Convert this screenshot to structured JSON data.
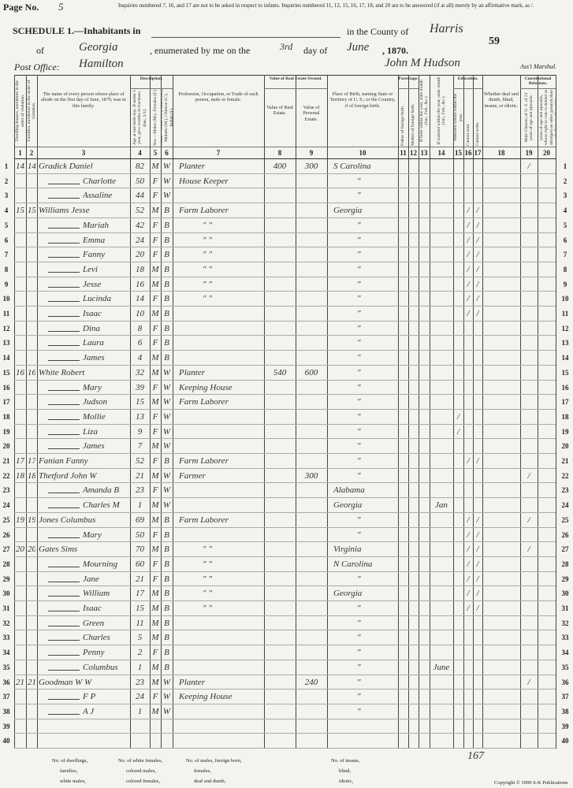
{
  "header": {
    "page_label": "Page No.",
    "page_number": "5",
    "notice": "Inquiries numbered 7, 16, and 17 are not to be asked in respect to infants. Inquiries numbered 11, 12, 15, 16, 17, 18, and 20 are to be answered (if at all) merely by an affirmative mark, as /.",
    "schedule": "SCHEDULE 1.—Inhabitants in",
    "county_label": "in the County of",
    "county": "Harris",
    "sheet": "59",
    "of_label": "of",
    "state": "Georgia",
    "enumerated_label": ", enumerated by me on the",
    "day": "3rd",
    "day_label": "day of",
    "month": "June",
    "year_label": ", 1870.",
    "post_office_label": "Post Office:",
    "post_office": "Hamilton",
    "marshal": "John M Hudson",
    "marshal_label": "Ass't Marshal."
  },
  "groups": [
    "Description.",
    "Value of Real Estate Owned.",
    "Parentage.",
    "Education.",
    "Constitutional Relations."
  ],
  "columns": [
    {
      "number": 1,
      "label": "Dwelling-houses, numbered in the order of visitation."
    },
    {
      "number": 2,
      "label": "Families, numbered in the order of visitation."
    },
    {
      "number": 3,
      "label": "The name of every person whose place of abode on the first day of June, 1870, was in this family."
    },
    {
      "number": 4,
      "label": "Age at last birth-day. If under 1 year, give months in fractions, thus, 3/12."
    },
    {
      "number": 5,
      "label": "Sex.—Males (M.), Females (F.)"
    },
    {
      "number": 6,
      "label": "Color.—White (W.), Black (B.), Mulatto (M.), Chinese (C.), Indian (I.)"
    },
    {
      "number": 7,
      "label": "Profession, Occupation, or Trade of each person, male or female."
    },
    {
      "number": 8,
      "label": "Value of Real Estate."
    },
    {
      "number": 9,
      "label": "Value of Personal Estate."
    },
    {
      "number": 10,
      "label": "Place of Birth, naming State or Territory of U. S.; or the Country, if of foreign birth."
    },
    {
      "number": 11,
      "label": "Father of foreign birth."
    },
    {
      "number": 12,
      "label": "Mother of foreign birth."
    },
    {
      "number": 13,
      "label": "If born within the year, state month (Jan., Feb., &c.)"
    },
    {
      "number": 14,
      "label": "If married within the year, state month (Jan., Feb., &c.)"
    },
    {
      "number": 15,
      "label": "Attended school within the year."
    },
    {
      "number": 16,
      "label": "Cannot read."
    },
    {
      "number": 17,
      "label": "Cannot write."
    },
    {
      "number": 18,
      "label": "Whether deaf and dumb, blind, insane, or idiotic."
    },
    {
      "number": 19,
      "label": "Male Citizens of U. S. of 21 years of age and upwards."
    },
    {
      "number": 20,
      "label": "Male Citizens of U. S. of 21 years of age and upwards, whose right to vote is denied or abridged on other grounds than rebellion or other crime."
    }
  ],
  "rows": [
    {
      "line": 1,
      "dwelling": 14,
      "family": 14,
      "name": "Gradick Daniel",
      "age": 82,
      "sex": "M",
      "color": "W",
      "occupation": "Planter",
      "real_estate": 400,
      "personal_estate": 300,
      "birthplace": "S Carolina",
      "c19": "/"
    },
    {
      "line": 2,
      "name": "Charlotte",
      "age": 50,
      "sex": "F",
      "color": "W",
      "occupation": "House Keeper",
      "birthplace": "\""
    },
    {
      "line": 3,
      "name": "Assaline",
      "age": 44,
      "sex": "F",
      "color": "W",
      "birthplace": "\""
    },
    {
      "line": 4,
      "dwelling": 15,
      "family": 15,
      "name": "Williams Jesse",
      "age": 52,
      "sex": "M",
      "color": "B",
      "occupation": "Farm Laborer",
      "birthplace": "Georgia",
      "c16": "/",
      "c17": "/"
    },
    {
      "line": 5,
      "name": "Mariah",
      "age": 42,
      "sex": "F",
      "color": "B",
      "occupation": "\"  \"",
      "birthplace": "\"",
      "c16": "/",
      "c17": "/"
    },
    {
      "line": 6,
      "name": "Emma",
      "age": 24,
      "sex": "F",
      "color": "B",
      "occupation": "\"  \"",
      "birthplace": "\"",
      "c16": "/",
      "c17": "/"
    },
    {
      "line": 7,
      "name": "Fanny",
      "age": 20,
      "sex": "F",
      "color": "B",
      "occupation": "\"  \"",
      "birthplace": "\"",
      "c16": "/",
      "c17": "/"
    },
    {
      "line": 8,
      "name": "Levi",
      "age": 18,
      "sex": "M",
      "color": "B",
      "occupation": "\"  \"",
      "birthplace": "\"",
      "c16": "/",
      "c17": "/"
    },
    {
      "line": 9,
      "name": "Jesse",
      "age": 16,
      "sex": "M",
      "color": "B",
      "occupation": "\"  \"",
      "birthplace": "\"",
      "c16": "/",
      "c17": "/"
    },
    {
      "line": 10,
      "name": "Lucinda",
      "age": 14,
      "sex": "F",
      "color": "B",
      "occupation": "\"  \"",
      "birthplace": "\"",
      "c16": "/",
      "c17": "/"
    },
    {
      "line": 11,
      "name": "Isaac",
      "age": 10,
      "sex": "M",
      "color": "B",
      "birthplace": "\"",
      "c16": "/",
      "c17": "/"
    },
    {
      "line": 12,
      "name": "Dina",
      "age": 8,
      "sex": "F",
      "color": "B",
      "birthplace": "\""
    },
    {
      "line": 13,
      "name": "Laura",
      "age": 6,
      "sex": "F",
      "color": "B",
      "birthplace": "\""
    },
    {
      "line": 14,
      "name": "James",
      "age": 4,
      "sex": "M",
      "color": "B",
      "birthplace": "\""
    },
    {
      "line": 15,
      "dwelling": 16,
      "family": 16,
      "name": "White Robert",
      "age": 32,
      "sex": "M",
      "color": "W",
      "occupation": "Planter",
      "real_estate": 540,
      "personal_estate": 600,
      "birthplace": "\""
    },
    {
      "line": 16,
      "name": "Mary",
      "age": 39,
      "sex": "F",
      "color": "W",
      "occupation": "Keeping House",
      "birthplace": "\""
    },
    {
      "line": 17,
      "name": "Judson",
      "age": 15,
      "sex": "M",
      "color": "W",
      "occupation": "Farm Laborer",
      "birthplace": "\""
    },
    {
      "line": 18,
      "name": "Mollie",
      "age": 13,
      "sex": "F",
      "color": "W",
      "birthplace": "\"",
      "c15": "/"
    },
    {
      "line": 19,
      "name": "Liza",
      "age": 9,
      "sex": "F",
      "color": "W",
      "birthplace": "\"",
      "c15": "/"
    },
    {
      "line": 20,
      "name": "James",
      "age": 7,
      "sex": "M",
      "color": "W",
      "birthplace": "\""
    },
    {
      "line": 21,
      "dwelling": 17,
      "family": 17,
      "name": "Fanian Fanny",
      "age": 52,
      "sex": "F",
      "color": "B",
      "occupation": "Farm Laborer",
      "birthplace": "\"",
      "c16": "/",
      "c17": "/"
    },
    {
      "line": 22,
      "dwelling": 18,
      "family": 18,
      "name": "Thetford John W",
      "age": 21,
      "sex": "M",
      "color": "W",
      "occupation": "Farmer",
      "personal_estate": 300,
      "birthplace": "\"",
      "c19": "/"
    },
    {
      "line": 23,
      "name": "Amanda B",
      "age": 23,
      "sex": "F",
      "color": "W",
      "birthplace": "Alabama"
    },
    {
      "line": 24,
      "name": "Charles M",
      "age": 1,
      "sex": "M",
      "color": "W",
      "birthplace": "Georgia",
      "c14": "Jan"
    },
    {
      "line": 25,
      "dwelling": 19,
      "family": 19,
      "name": "Jones Columbus",
      "age": 69,
      "sex": "M",
      "color": "B",
      "occupation": "Farm Laborer",
      "birthplace": "\"",
      "c16": "/",
      "c17": "/",
      "c19": "/"
    },
    {
      "line": 26,
      "name": "Mary",
      "age": 50,
      "sex": "F",
      "color": "B",
      "birthplace": "\"",
      "c16": "/",
      "c17": "/"
    },
    {
      "line": 27,
      "dwelling": 20,
      "family": 20,
      "name": "Gates Sims",
      "age": 70,
      "sex": "M",
      "color": "B",
      "occupation": "\"  \"",
      "birthplace": "Virginia",
      "c16": "/",
      "c17": "/",
      "c19": "/"
    },
    {
      "line": 28,
      "name": "Mourning",
      "age": 60,
      "sex": "F",
      "color": "B",
      "occupation": "\"  \"",
      "birthplace": "N Carolina",
      "c16": "/",
      "c17": "/"
    },
    {
      "line": 29,
      "name": "Jane",
      "age": 21,
      "sex": "F",
      "color": "B",
      "occupation": "\"  \"",
      "birthplace": "\"",
      "c16": "/",
      "c17": "/"
    },
    {
      "line": 30,
      "name": "William",
      "age": 17,
      "sex": "M",
      "color": "B",
      "occupation": "\"  \"",
      "birthplace": "Georgia",
      "c16": "/",
      "c17": "/"
    },
    {
      "line": 31,
      "name": "Isaac",
      "age": 15,
      "sex": "M",
      "color": "B",
      "occupation": "\"  \"",
      "birthplace": "\"",
      "c16": "/",
      "c17": "/"
    },
    {
      "line": 32,
      "name": "Green",
      "age": 11,
      "sex": "M",
      "color": "B",
      "birthplace": "\""
    },
    {
      "line": 33,
      "name": "Charles",
      "age": 5,
      "sex": "M",
      "color": "B",
      "birthplace": "\""
    },
    {
      "line": 34,
      "name": "Penny",
      "age": 2,
      "sex": "F",
      "color": "B",
      "birthplace": "\""
    },
    {
      "line": 35,
      "name": "Columbus",
      "age": 1,
      "sex": "M",
      "color": "B",
      "birthplace": "\"",
      "c14": "June"
    },
    {
      "line": 36,
      "dwelling": 21,
      "family": 21,
      "name": "Goodman W W",
      "age": 23,
      "sex": "M",
      "color": "W",
      "occupation": "Planter",
      "personal_estate": 240,
      "birthplace": "\"",
      "c19": "/"
    },
    {
      "line": 37,
      "name": "F P",
      "age": 24,
      "sex": "F",
      "color": "W",
      "occupation": "Keeping House",
      "birthplace": "\""
    },
    {
      "line": 38,
      "name": "A J",
      "age": 1,
      "sex": "M",
      "color": "W",
      "birthplace": "\""
    },
    {
      "line": 39
    },
    {
      "line": 40
    }
  ],
  "footer": {
    "labels": [
      "No. of dwellings,",
      "No. of white females,",
      "No. of males, foreign born,",
      "No. of insane,",
      "families,",
      "colored males,",
      "females,",
      "blind,",
      "white males,",
      "colored females,",
      "deaf and dumb,",
      "idiotic,"
    ],
    "page_tally": "167",
    "copyright": "Copyright © 1999 S-K Publications"
  }
}
